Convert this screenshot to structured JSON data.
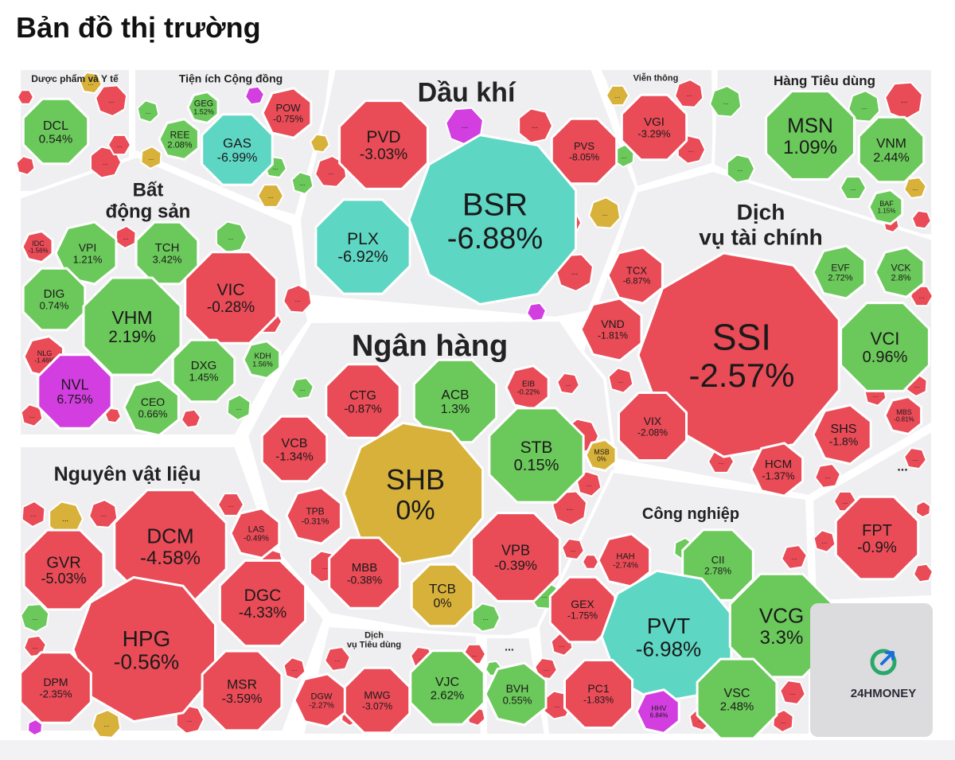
{
  "page": {
    "title": "Bản đồ thị trường"
  },
  "brand": {
    "logo_text": "24HMONEY"
  },
  "colors": {
    "down": "#e94b57",
    "up": "#6bc85a",
    "flat": "#d8b13a",
    "ceiling": "#d23ee0",
    "floor": "#5ed6c4",
    "panel": "#efeff1"
  },
  "sectors": [
    {
      "name": "Dược phẩm và Y tế"
    },
    {
      "name": "Tiện ích Cộng đồng"
    },
    {
      "name": "Dầu khí"
    },
    {
      "name": "Viễn thông"
    },
    {
      "name": "Hàng Tiêu dùng"
    },
    {
      "name": "Bất động sản",
      "lines": [
        "Bất",
        "động sản"
      ]
    },
    {
      "name": "Dịch vụ tài chính",
      "lines": [
        "Dịch",
        "vụ tài chính"
      ]
    },
    {
      "name": "Ngân hàng"
    },
    {
      "name": "Nguyên vật liệu"
    },
    {
      "name": "Công nghiệp"
    },
    {
      "name": "Dịch vụ Tiêu dùng",
      "lines": [
        "Dịch",
        "vụ Tiêu dùng"
      ]
    },
    {
      "name": "..."
    },
    {
      "name": "..."
    }
  ],
  "stocks": [
    {
      "ticker": "DCL",
      "change": "0.54%",
      "state": "up"
    },
    {
      "ticker": "GEG",
      "change": "1.52%",
      "state": "up"
    },
    {
      "ticker": "REE",
      "change": "2.08%",
      "state": "up"
    },
    {
      "ticker": "POW",
      "change": "-0.75%",
      "state": "down"
    },
    {
      "ticker": "GAS",
      "change": "-6.99%",
      "state": "floor"
    },
    {
      "ticker": "PVD",
      "change": "-3.03%",
      "state": "down"
    },
    {
      "ticker": "PVS",
      "change": "-8.05%",
      "state": "down"
    },
    {
      "ticker": "BSR",
      "change": "-6.88%",
      "state": "floor"
    },
    {
      "ticker": "PLX",
      "change": "-6.92%",
      "state": "floor"
    },
    {
      "ticker": "VGI",
      "change": "-3.29%",
      "state": "down"
    },
    {
      "ticker": "MSN",
      "change": "1.09%",
      "state": "up"
    },
    {
      "ticker": "VNM",
      "change": "2.44%",
      "state": "up"
    },
    {
      "ticker": "BAF",
      "change": "1.15%",
      "state": "up"
    },
    {
      "ticker": "IDC",
      "change": "-1.56%",
      "state": "down"
    },
    {
      "ticker": "VPI",
      "change": "1.21%",
      "state": "up"
    },
    {
      "ticker": "TCH",
      "change": "3.42%",
      "state": "up"
    },
    {
      "ticker": "VIC",
      "change": "-0.28%",
      "state": "down"
    },
    {
      "ticker": "DIG",
      "change": "0.74%",
      "state": "up"
    },
    {
      "ticker": "VHM",
      "change": "2.19%",
      "state": "up"
    },
    {
      "ticker": "NLG",
      "change": "-1.46%",
      "state": "down"
    },
    {
      "ticker": "KDH",
      "change": "1.56%",
      "state": "up"
    },
    {
      "ticker": "DXG",
      "change": "1.45%",
      "state": "up"
    },
    {
      "ticker": "NVL",
      "change": "6.75%",
      "state": "ceiling"
    },
    {
      "ticker": "CEO",
      "change": "0.66%",
      "state": "up"
    },
    {
      "ticker": "TCX",
      "change": "-6.87%",
      "state": "down"
    },
    {
      "ticker": "EVF",
      "change": "2.72%",
      "state": "up"
    },
    {
      "ticker": "VCK",
      "change": "2.8%",
      "state": "up"
    },
    {
      "ticker": "VND",
      "change": "-1.81%",
      "state": "down"
    },
    {
      "ticker": "SSI",
      "change": "-2.57%",
      "state": "down"
    },
    {
      "ticker": "VCI",
      "change": "0.96%",
      "state": "up"
    },
    {
      "ticker": "VIX",
      "change": "-2.08%",
      "state": "down"
    },
    {
      "ticker": "SHS",
      "change": "-1.8%",
      "state": "down"
    },
    {
      "ticker": "MBS",
      "change": "-0.81%",
      "state": "down"
    },
    {
      "ticker": "HCM",
      "change": "-1.37%",
      "state": "down"
    },
    {
      "ticker": "CTG",
      "change": "-0.87%",
      "state": "down"
    },
    {
      "ticker": "ACB",
      "change": "1.3%",
      "state": "up"
    },
    {
      "ticker": "EIB",
      "change": "-0.22%",
      "state": "down"
    },
    {
      "ticker": "VCB",
      "change": "-1.34%",
      "state": "down"
    },
    {
      "ticker": "SHB",
      "change": "0%",
      "state": "flat"
    },
    {
      "ticker": "STB",
      "change": "0.15%",
      "state": "up"
    },
    {
      "ticker": "MSB",
      "change": "0%",
      "state": "flat"
    },
    {
      "ticker": "TPB",
      "change": "-0.31%",
      "state": "down"
    },
    {
      "ticker": "MBB",
      "change": "-0.38%",
      "state": "down"
    },
    {
      "ticker": "VPB",
      "change": "-0.39%",
      "state": "down"
    },
    {
      "ticker": "TCB",
      "change": "0%",
      "state": "flat"
    },
    {
      "ticker": "GVR",
      "change": "-5.03%",
      "state": "down"
    },
    {
      "ticker": "DCM",
      "change": "-4.58%",
      "state": "down"
    },
    {
      "ticker": "LAS",
      "change": "-0.49%",
      "state": "down"
    },
    {
      "ticker": "DGC",
      "change": "-4.33%",
      "state": "down"
    },
    {
      "ticker": "HPG",
      "change": "-0.56%",
      "state": "down"
    },
    {
      "ticker": "DPM",
      "change": "-2.35%",
      "state": "down"
    },
    {
      "ticker": "MSR",
      "change": "-3.59%",
      "state": "down"
    },
    {
      "ticker": "DGW",
      "change": "-2.27%",
      "state": "down"
    },
    {
      "ticker": "MWG",
      "change": "-3.07%",
      "state": "down"
    },
    {
      "ticker": "VJC",
      "change": "2.62%",
      "state": "up"
    },
    {
      "ticker": "BVH",
      "change": "0.55%",
      "state": "up"
    },
    {
      "ticker": "HAH",
      "change": "-2.74%",
      "state": "down"
    },
    {
      "ticker": "CII",
      "change": "2.78%",
      "state": "up"
    },
    {
      "ticker": "GEX",
      "change": "-1.75%",
      "state": "down"
    },
    {
      "ticker": "PVT",
      "change": "-6.98%",
      "state": "floor"
    },
    {
      "ticker": "VCG",
      "change": "3.3%",
      "state": "up"
    },
    {
      "ticker": "PC1",
      "change": "-1.83%",
      "state": "down"
    },
    {
      "ticker": "HHV",
      "change": "6.84%",
      "state": "ceiling"
    },
    {
      "ticker": "VSC",
      "change": "2.48%",
      "state": "up"
    },
    {
      "ticker": "FPT",
      "change": "-0.9%",
      "state": "down"
    }
  ],
  "more_label": "..."
}
